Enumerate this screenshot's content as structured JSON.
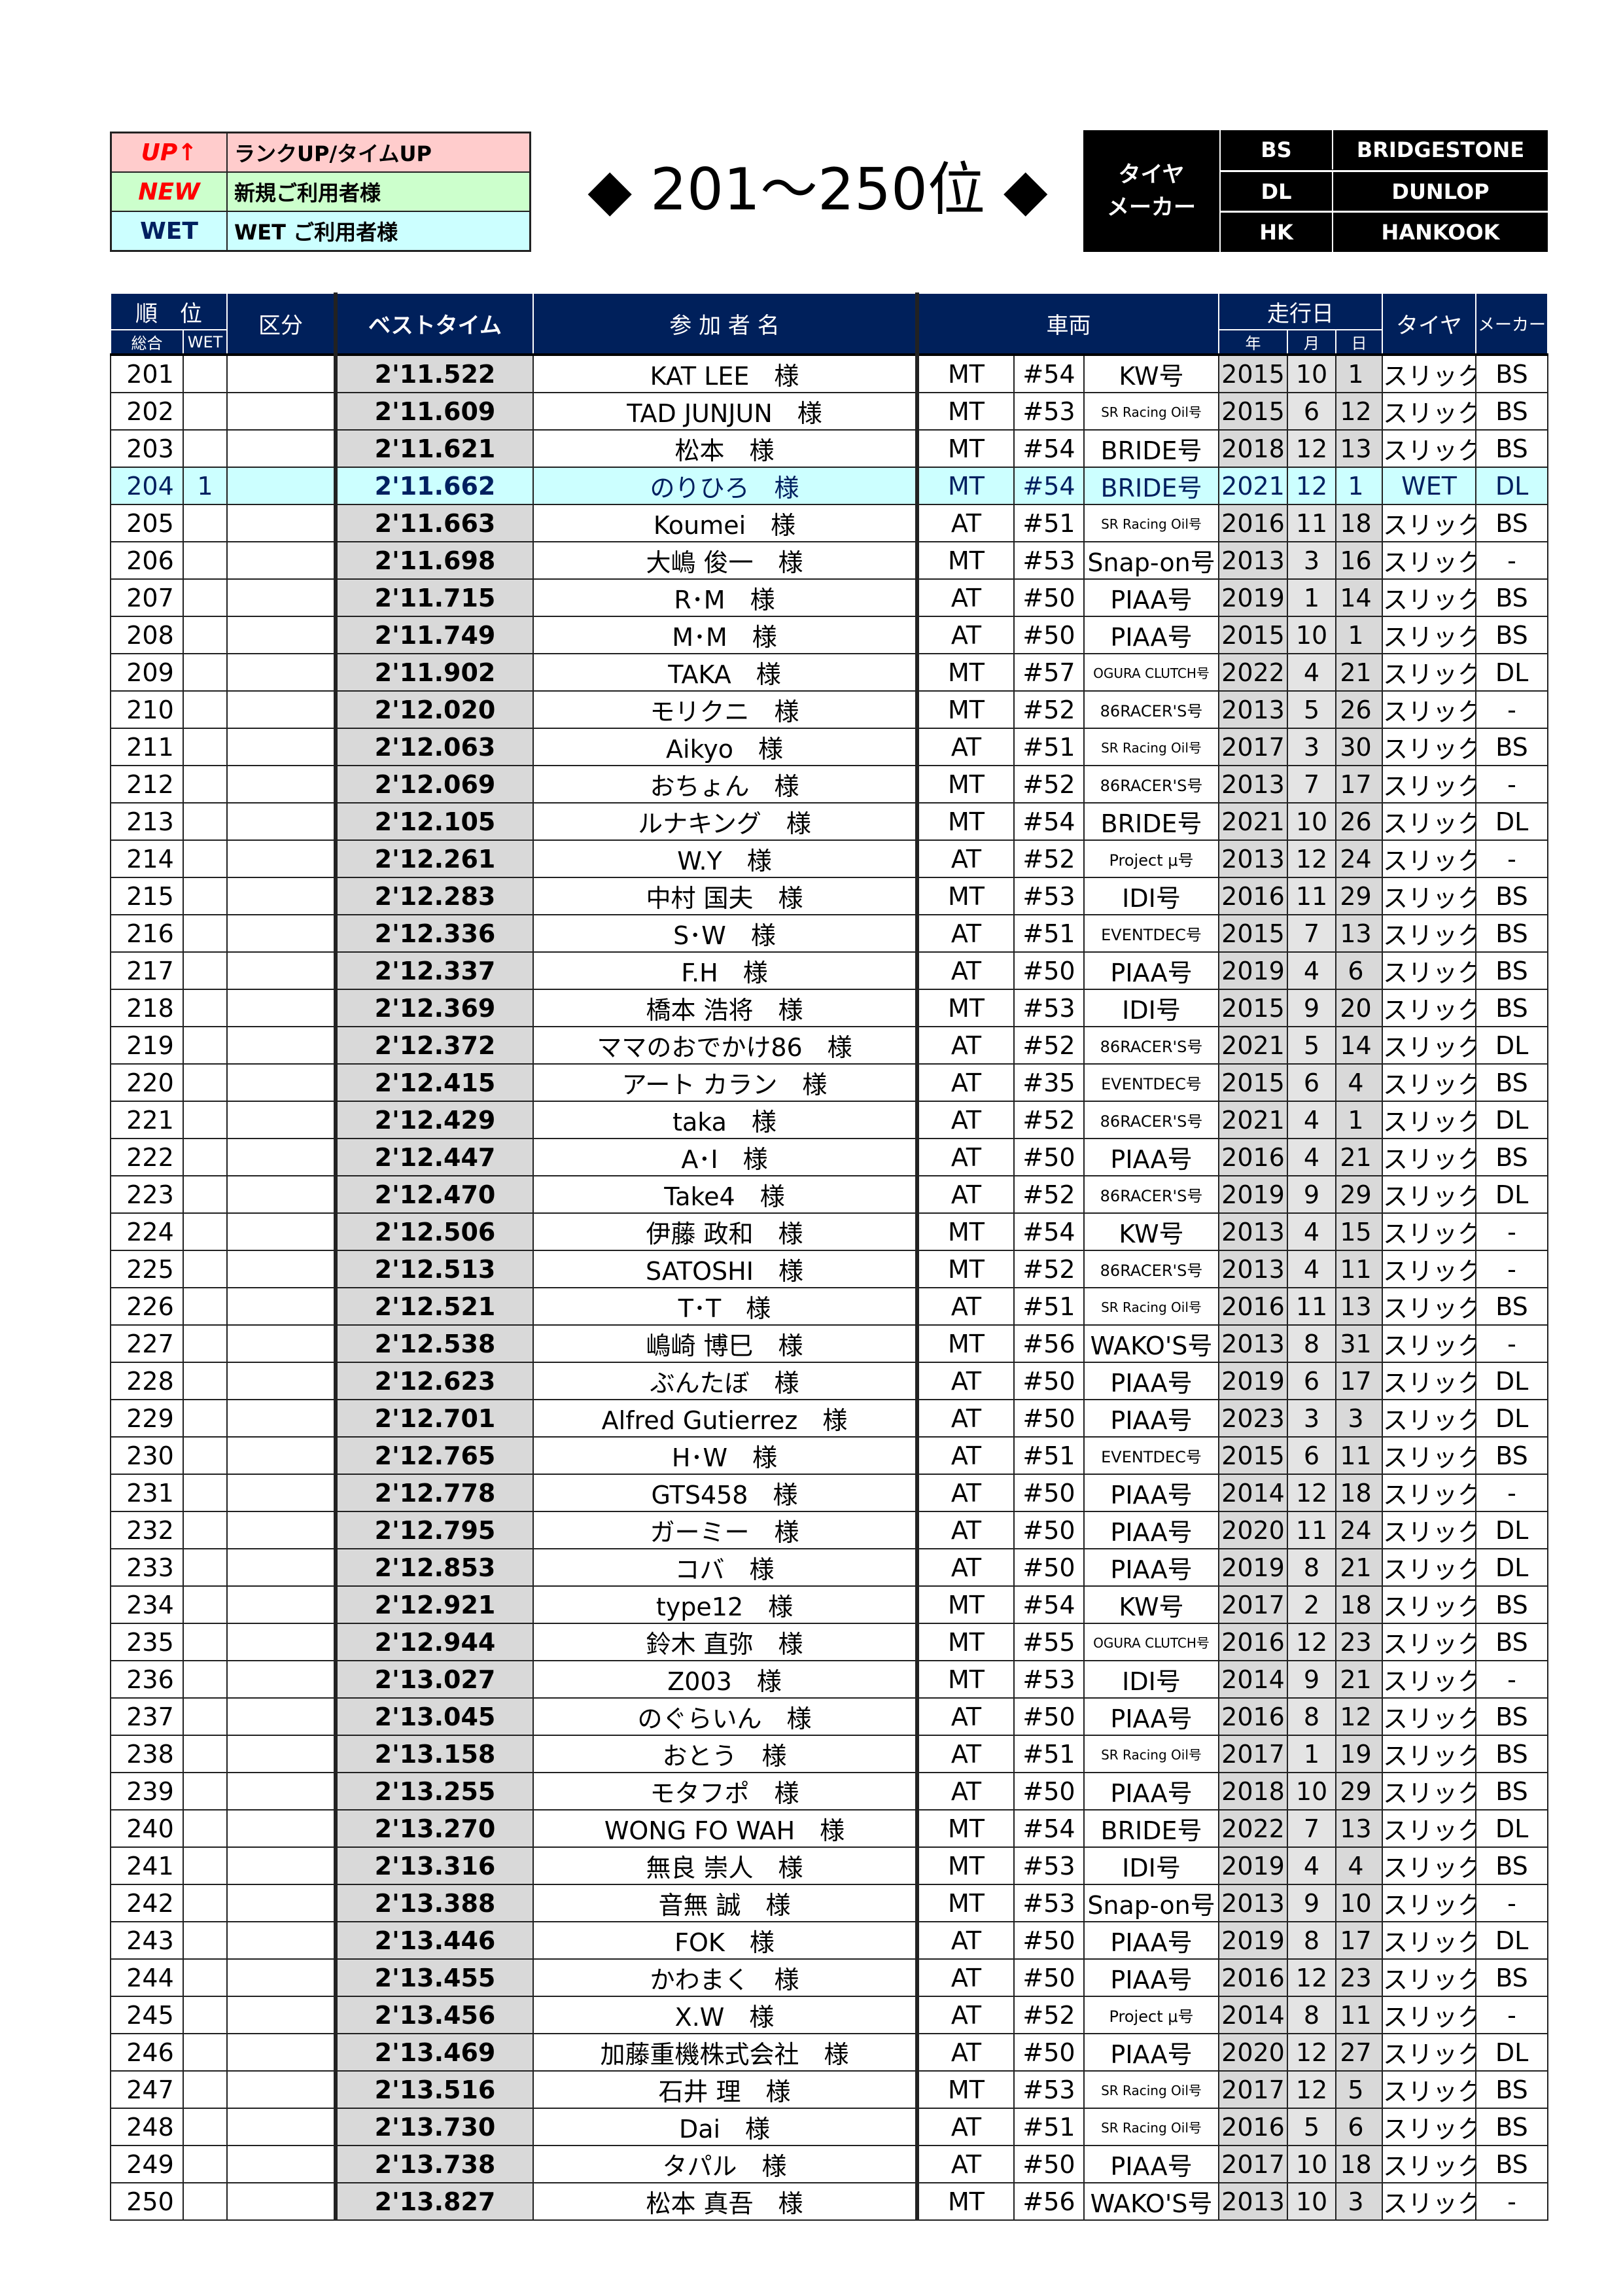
{
  "legend": [
    {
      "key": "UP↑",
      "desc": "ランクUP/タイムUP",
      "bg": "#ffcccc",
      "color": "#ff0000"
    },
    {
      "key": "NEW",
      "desc": "新規ご利用者様",
      "bg": "#ccffcc",
      "color": "#ff0000"
    },
    {
      "key": "WET",
      "desc": "WET ご利用者様",
      "bg": "#ccffff",
      "color": "#002060"
    }
  ],
  "title": "◆ 201～250位 ◆",
  "tire_maker": {
    "label_1": "タイヤ",
    "label_2": "メーカー",
    "items": [
      {
        "code": "BS",
        "name": "BRIDGESTONE"
      },
      {
        "code": "DL",
        "name": "DUNLOP"
      },
      {
        "code": "HK",
        "name": "HANKOOK"
      }
    ]
  },
  "headers": {
    "rank": "順　位",
    "overall": "総合",
    "wet": "WET",
    "category": "区分",
    "best_time": "ベストタイム",
    "participant": "参 加 者 名",
    "vehicle": "車両",
    "run_date": "走行日",
    "year": "年",
    "month": "月",
    "day": "日",
    "tire": "タイヤ",
    "maker": "メーカー"
  },
  "colors": {
    "header_bg": "#00205b",
    "time_bg": "#d9d9d9",
    "wet_row_bg": "#ccffff"
  },
  "rows": [
    [
      "201",
      "",
      "",
      "2'11.522",
      "KAT LEE　様",
      "MT",
      "#54",
      "KW号",
      "2015",
      "10",
      "1",
      "スリック",
      "BS"
    ],
    [
      "202",
      "",
      "",
      "2'11.609",
      "TAD JUNJUN　様",
      "MT",
      "#53",
      "SR Racing Oil号",
      "2015",
      "6",
      "12",
      "スリック",
      "BS"
    ],
    [
      "203",
      "",
      "",
      "2'11.621",
      "松本　様",
      "MT",
      "#54",
      "BRIDE号",
      "2018",
      "12",
      "13",
      "スリック",
      "BS"
    ],
    [
      "204",
      "1",
      "",
      "2'11.662",
      "のりひろ　様",
      "MT",
      "#54",
      "BRIDE号",
      "2021",
      "12",
      "1",
      "WET",
      "DL"
    ],
    [
      "205",
      "",
      "",
      "2'11.663",
      "Koumei　様",
      "AT",
      "#51",
      "SR Racing Oil号",
      "2016",
      "11",
      "18",
      "スリック",
      "BS"
    ],
    [
      "206",
      "",
      "",
      "2'11.698",
      "大嶋 俊一　様",
      "MT",
      "#53",
      "Snap-on号",
      "2013",
      "3",
      "16",
      "スリック",
      "-"
    ],
    [
      "207",
      "",
      "",
      "2'11.715",
      "R･M　様",
      "AT",
      "#50",
      "PIAA号",
      "2019",
      "1",
      "14",
      "スリック",
      "BS"
    ],
    [
      "208",
      "",
      "",
      "2'11.749",
      "M･M　様",
      "AT",
      "#50",
      "PIAA号",
      "2015",
      "10",
      "1",
      "スリック",
      "BS"
    ],
    [
      "209",
      "",
      "",
      "2'11.902",
      "TAKA　様",
      "MT",
      "#57",
      "OGURA CLUTCH号",
      "2022",
      "4",
      "21",
      "スリック",
      "DL"
    ],
    [
      "210",
      "",
      "",
      "2'12.020",
      "モリクニ　様",
      "MT",
      "#52",
      "86RACER'S号",
      "2013",
      "5",
      "26",
      "スリック",
      "-"
    ],
    [
      "211",
      "",
      "",
      "2'12.063",
      "Aikyo　様",
      "AT",
      "#51",
      "SR Racing Oil号",
      "2017",
      "3",
      "30",
      "スリック",
      "BS"
    ],
    [
      "212",
      "",
      "",
      "2'12.069",
      "おちょん　様",
      "MT",
      "#52",
      "86RACER'S号",
      "2013",
      "7",
      "17",
      "スリック",
      "-"
    ],
    [
      "213",
      "",
      "",
      "2'12.105",
      "ルナキング　様",
      "MT",
      "#54",
      "BRIDE号",
      "2021",
      "10",
      "26",
      "スリック",
      "DL"
    ],
    [
      "214",
      "",
      "",
      "2'12.261",
      "W.Y　様",
      "AT",
      "#52",
      "Project μ号",
      "2013",
      "12",
      "24",
      "スリック",
      "-"
    ],
    [
      "215",
      "",
      "",
      "2'12.283",
      "中村 国夫　様",
      "MT",
      "#53",
      "IDI号",
      "2016",
      "11",
      "29",
      "スリック",
      "BS"
    ],
    [
      "216",
      "",
      "",
      "2'12.336",
      "S･W　様",
      "AT",
      "#51",
      "EVENTDEC号",
      "2015",
      "7",
      "13",
      "スリック",
      "BS"
    ],
    [
      "217",
      "",
      "",
      "2'12.337",
      "F.H　様",
      "AT",
      "#50",
      "PIAA号",
      "2019",
      "4",
      "6",
      "スリック",
      "BS"
    ],
    [
      "218",
      "",
      "",
      "2'12.369",
      "橋本 浩将　様",
      "MT",
      "#53",
      "IDI号",
      "2015",
      "9",
      "20",
      "スリック",
      "BS"
    ],
    [
      "219",
      "",
      "",
      "2'12.372",
      "ママのおでかけ86　様",
      "AT",
      "#52",
      "86RACER'S号",
      "2021",
      "5",
      "14",
      "スリック",
      "DL"
    ],
    [
      "220",
      "",
      "",
      "2'12.415",
      "アート カラン　様",
      "AT",
      "#35",
      "EVENTDEC号",
      "2015",
      "6",
      "4",
      "スリック",
      "BS"
    ],
    [
      "221",
      "",
      "",
      "2'12.429",
      "taka　様",
      "AT",
      "#52",
      "86RACER'S号",
      "2021",
      "4",
      "1",
      "スリック",
      "DL"
    ],
    [
      "222",
      "",
      "",
      "2'12.447",
      "A･I　様",
      "AT",
      "#50",
      "PIAA号",
      "2016",
      "4",
      "21",
      "スリック",
      "BS"
    ],
    [
      "223",
      "",
      "",
      "2'12.470",
      "Take4　様",
      "AT",
      "#52",
      "86RACER'S号",
      "2019",
      "9",
      "29",
      "スリック",
      "DL"
    ],
    [
      "224",
      "",
      "",
      "2'12.506",
      "伊藤 政和　様",
      "MT",
      "#54",
      "KW号",
      "2013",
      "4",
      "15",
      "スリック",
      "-"
    ],
    [
      "225",
      "",
      "",
      "2'12.513",
      "SATOSHI　様",
      "MT",
      "#52",
      "86RACER'S号",
      "2013",
      "4",
      "11",
      "スリック",
      "-"
    ],
    [
      "226",
      "",
      "",
      "2'12.521",
      "T･T　様",
      "AT",
      "#51",
      "SR Racing Oil号",
      "2016",
      "11",
      "13",
      "スリック",
      "BS"
    ],
    [
      "227",
      "",
      "",
      "2'12.538",
      "嶋崎 博巳　様",
      "MT",
      "#56",
      "WAKO'S号",
      "2013",
      "8",
      "31",
      "スリック",
      "-"
    ],
    [
      "228",
      "",
      "",
      "2'12.623",
      "ぶんたぼ　様",
      "AT",
      "#50",
      "PIAA号",
      "2019",
      "6",
      "17",
      "スリック",
      "DL"
    ],
    [
      "229",
      "",
      "",
      "2'12.701",
      "Alfred Gutierrez　様",
      "AT",
      "#50",
      "PIAA号",
      "2023",
      "3",
      "3",
      "スリック",
      "DL"
    ],
    [
      "230",
      "",
      "",
      "2'12.765",
      "H･W　様",
      "AT",
      "#51",
      "EVENTDEC号",
      "2015",
      "6",
      "11",
      "スリック",
      "BS"
    ],
    [
      "231",
      "",
      "",
      "2'12.778",
      "GTS458　様",
      "AT",
      "#50",
      "PIAA号",
      "2014",
      "12",
      "18",
      "スリック",
      "-"
    ],
    [
      "232",
      "",
      "",
      "2'12.795",
      "ガーミー　様",
      "AT",
      "#50",
      "PIAA号",
      "2020",
      "11",
      "24",
      "スリック",
      "DL"
    ],
    [
      "233",
      "",
      "",
      "2'12.853",
      "コバ　様",
      "AT",
      "#50",
      "PIAA号",
      "2019",
      "8",
      "21",
      "スリック",
      "DL"
    ],
    [
      "234",
      "",
      "",
      "2'12.921",
      "type12　様",
      "MT",
      "#54",
      "KW号",
      "2017",
      "2",
      "18",
      "スリック",
      "BS"
    ],
    [
      "235",
      "",
      "",
      "2'12.944",
      "鈴木 直弥　様",
      "MT",
      "#55",
      "OGURA CLUTCH号",
      "2016",
      "12",
      "23",
      "スリック",
      "BS"
    ],
    [
      "236",
      "",
      "",
      "2'13.027",
      "Z003　様",
      "MT",
      "#53",
      "IDI号",
      "2014",
      "9",
      "21",
      "スリック",
      "-"
    ],
    [
      "237",
      "",
      "",
      "2'13.045",
      "のぐらいん　様",
      "AT",
      "#50",
      "PIAA号",
      "2016",
      "8",
      "12",
      "スリック",
      "BS"
    ],
    [
      "238",
      "",
      "",
      "2'13.158",
      "おとう　様",
      "AT",
      "#51",
      "SR Racing Oil号",
      "2017",
      "1",
      "19",
      "スリック",
      "BS"
    ],
    [
      "239",
      "",
      "",
      "2'13.255",
      "モタフポ　様",
      "AT",
      "#50",
      "PIAA号",
      "2018",
      "10",
      "29",
      "スリック",
      "BS"
    ],
    [
      "240",
      "",
      "",
      "2'13.270",
      "WONG FO WAH　様",
      "MT",
      "#54",
      "BRIDE号",
      "2022",
      "7",
      "13",
      "スリック",
      "DL"
    ],
    [
      "241",
      "",
      "",
      "2'13.316",
      "無良 崇人　様",
      "MT",
      "#53",
      "IDI号",
      "2019",
      "4",
      "4",
      "スリック",
      "BS"
    ],
    [
      "242",
      "",
      "",
      "2'13.388",
      "音無 誠　様",
      "MT",
      "#53",
      "Snap-on号",
      "2013",
      "9",
      "10",
      "スリック",
      "-"
    ],
    [
      "243",
      "",
      "",
      "2'13.446",
      "FOK　様",
      "AT",
      "#50",
      "PIAA号",
      "2019",
      "8",
      "17",
      "スリック",
      "DL"
    ],
    [
      "244",
      "",
      "",
      "2'13.455",
      "かわまく　様",
      "AT",
      "#50",
      "PIAA号",
      "2016",
      "12",
      "23",
      "スリック",
      "BS"
    ],
    [
      "245",
      "",
      "",
      "2'13.456",
      "X.W　様",
      "AT",
      "#52",
      "Project μ号",
      "2014",
      "8",
      "11",
      "スリック",
      "-"
    ],
    [
      "246",
      "",
      "",
      "2'13.469",
      "加藤重機株式会社　様",
      "AT",
      "#50",
      "PIAA号",
      "2020",
      "12",
      "27",
      "スリック",
      "DL"
    ],
    [
      "247",
      "",
      "",
      "2'13.516",
      "石井 理　様",
      "MT",
      "#53",
      "SR Racing Oil号",
      "2017",
      "12",
      "5",
      "スリック",
      "BS"
    ],
    [
      "248",
      "",
      "",
      "2'13.730",
      "Dai　様",
      "AT",
      "#51",
      "SR Racing Oil号",
      "2016",
      "5",
      "6",
      "スリック",
      "BS"
    ],
    [
      "249",
      "",
      "",
      "2'13.738",
      "タパル　様",
      "AT",
      "#50",
      "PIAA号",
      "2017",
      "10",
      "18",
      "スリック",
      "BS"
    ],
    [
      "250",
      "",
      "",
      "2'13.827",
      "松本 真吾　様",
      "MT",
      "#56",
      "WAKO'S号",
      "2013",
      "10",
      "3",
      "スリック",
      "-"
    ]
  ]
}
